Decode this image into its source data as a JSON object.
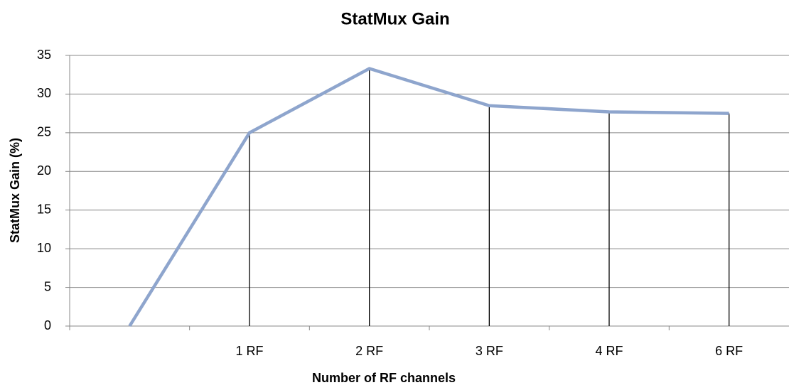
{
  "chart_data": {
    "type": "line",
    "title": "StatMux Gain",
    "x_label": "Number of RF channels",
    "y_label": "StatMux Gain (%)",
    "categories": [
      null,
      "1 RF",
      "2 RF",
      "3 RF",
      "4 RF",
      "6 RF"
    ],
    "series": [
      {
        "name": "StatMux Gain",
        "color": "#8ea5cd",
        "values": [
          0,
          25,
          33.3,
          28.5,
          27.7,
          27.5
        ]
      }
    ],
    "ylim": [
      0,
      35
    ],
    "yticks": [
      0,
      5,
      10,
      15,
      20,
      25,
      30,
      35
    ],
    "grid": true,
    "drop_lines": true
  }
}
